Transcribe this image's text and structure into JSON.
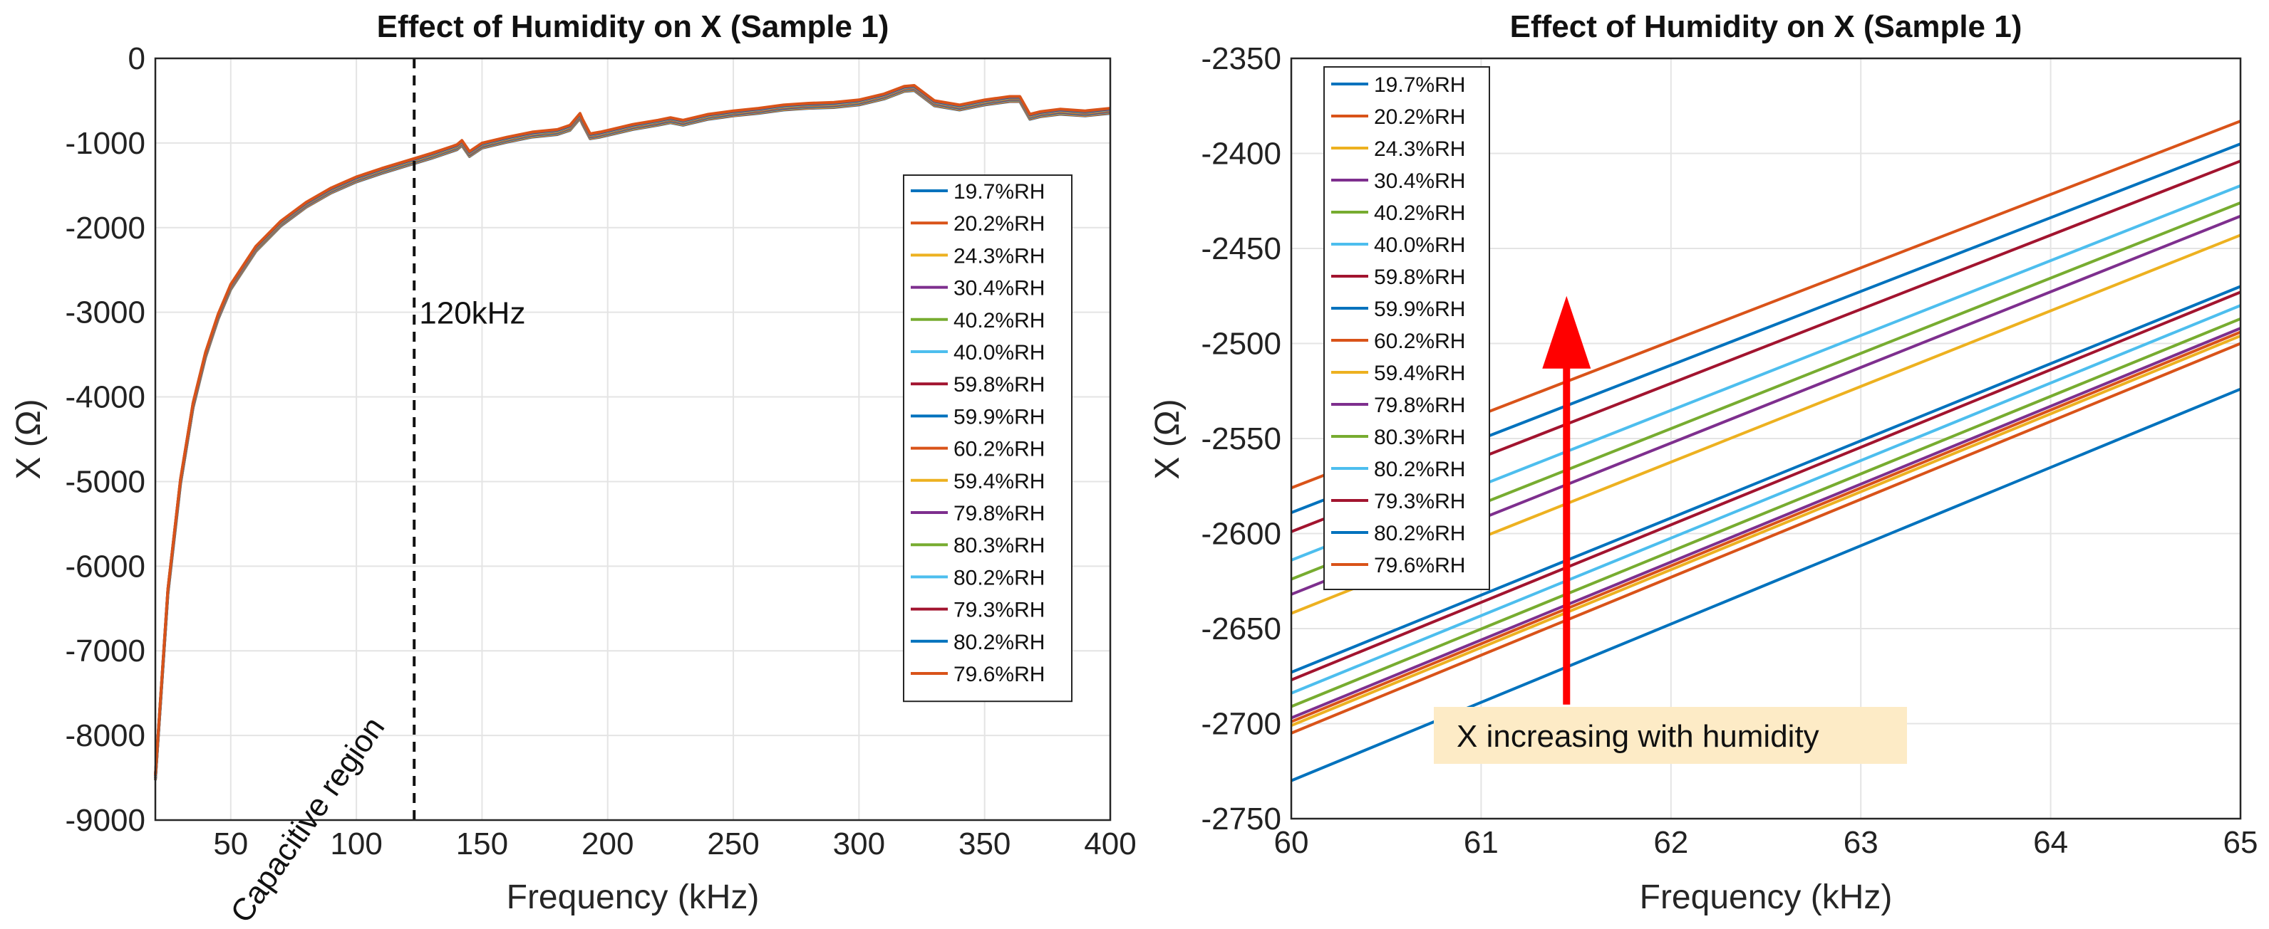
{
  "chart_data": [
    {
      "type": "line",
      "title": "Effect of Humidity on X (Sample 1)",
      "xlabel": "Frequency (kHz)",
      "ylabel": "X (Ω)",
      "xlim": [
        20,
        400
      ],
      "ylim": [
        -9000,
        0
      ],
      "xticks": [
        50,
        100,
        150,
        200,
        250,
        300,
        350,
        400
      ],
      "yticks": [
        0,
        -1000,
        -2000,
        -3000,
        -4000,
        -5000,
        -6000,
        -7000,
        -8000,
        -9000
      ],
      "grid": true,
      "legend_position": "right",
      "annotations": [
        {
          "text": "120kHz",
          "x": 125,
          "y": -3000
        },
        {
          "text": "Capacitive region",
          "x": 45,
          "y": -7000
        }
      ],
      "vline": {
        "x": 123,
        "style": "dashed",
        "color": "#111111"
      },
      "series_shape": {
        "points_kHz": [
          20,
          25,
          30,
          35,
          40,
          45,
          50,
          60,
          70,
          80,
          90,
          100,
          110,
          120,
          130,
          140,
          142,
          145,
          150,
          160,
          170,
          180,
          185,
          189,
          190,
          193,
          197,
          200,
          210,
          220,
          225,
          230,
          240,
          250,
          260,
          270,
          280,
          290,
          300,
          310,
          318,
          322,
          330,
          340,
          350,
          360,
          364,
          368,
          372,
          380,
          390,
          400
        ],
        "values_ohm": [
          -8500,
          -6300,
          -5000,
          -4100,
          -3500,
          -3050,
          -2700,
          -2250,
          -1950,
          -1730,
          -1560,
          -1430,
          -1330,
          -1240,
          -1150,
          -1050,
          -1000,
          -1130,
          -1030,
          -960,
          -900,
          -870,
          -820,
          -680,
          -750,
          -920,
          -900,
          -880,
          -810,
          -760,
          -730,
          -760,
          -690,
          -650,
          -620,
          -580,
          -560,
          -550,
          -520,
          -450,
          -360,
          -350,
          -530,
          -580,
          -520,
          -480,
          -480,
          -690,
          -660,
          -630,
          -650,
          -620
        ],
        "spread_ohm": 60
      },
      "series": [
        {
          "name": "19.7%RH",
          "color": "#0072BD"
        },
        {
          "name": "20.2%RH",
          "color": "#D95319"
        },
        {
          "name": "24.3%RH",
          "color": "#EDB120"
        },
        {
          "name": "30.4%RH",
          "color": "#7E2F8E"
        },
        {
          "name": "40.2%RH",
          "color": "#77AC30"
        },
        {
          "name": "40.0%RH",
          "color": "#4DBEEE"
        },
        {
          "name": "59.8%RH",
          "color": "#A2142F"
        },
        {
          "name": "59.9%RH",
          "color": "#0072BD"
        },
        {
          "name": "60.2%RH",
          "color": "#D95319"
        },
        {
          "name": "59.4%RH",
          "color": "#EDB120"
        },
        {
          "name": "79.8%RH",
          "color": "#7E2F8E"
        },
        {
          "name": "80.3%RH",
          "color": "#77AC30"
        },
        {
          "name": "80.2%RH",
          "color": "#4DBEEE"
        },
        {
          "name": "79.3%RH",
          "color": "#A2142F"
        },
        {
          "name": "80.2%RH",
          "color": "#0072BD"
        },
        {
          "name": "79.6%RH",
          "color": "#D95319"
        }
      ]
    },
    {
      "type": "line",
      "title": "Effect of Humidity on X (Sample 1)",
      "xlabel": "Frequency (kHz)",
      "ylabel": "X (Ω)",
      "xlim": [
        60,
        65
      ],
      "ylim": [
        -2750,
        -2350
      ],
      "xticks": [
        60,
        61,
        62,
        63,
        64,
        65
      ],
      "yticks": [
        -2350,
        -2400,
        -2450,
        -2500,
        -2550,
        -2600,
        -2650,
        -2700,
        -2750
      ],
      "grid": true,
      "legend_position": "top-left",
      "annotations": [
        {
          "text": "X increasing with humidity",
          "arrow_from": [
            61.45,
            -2690
          ],
          "arrow_to": [
            61.45,
            -2475
          ]
        }
      ],
      "series": [
        {
          "name": "19.7%RH",
          "color": "#0072BD",
          "x": [
            60,
            65
          ],
          "y": [
            -2730,
            -2524
          ]
        },
        {
          "name": "20.2%RH",
          "color": "#D95319",
          "x": [
            60,
            65
          ],
          "y": [
            -2705,
            -2500
          ]
        },
        {
          "name": "24.3%RH",
          "color": "#EDB120",
          "x": [
            60,
            65
          ],
          "y": [
            -2701,
            -2496
          ]
        },
        {
          "name": "30.4%RH",
          "color": "#7E2F8E",
          "x": [
            60,
            65
          ],
          "y": [
            -2697,
            -2492
          ]
        },
        {
          "name": "40.2%RH",
          "color": "#77AC30",
          "x": [
            60,
            65
          ],
          "y": [
            -2691,
            -2487
          ]
        },
        {
          "name": "40.0%RH",
          "color": "#4DBEEE",
          "x": [
            60,
            65
          ],
          "y": [
            -2684,
            -2480
          ]
        },
        {
          "name": "59.8%RH",
          "color": "#A2142F",
          "x": [
            60,
            65
          ],
          "y": [
            -2677,
            -2473
          ]
        },
        {
          "name": "59.9%RH",
          "color": "#0072BD",
          "x": [
            60,
            65
          ],
          "y": [
            -2673,
            -2470
          ]
        },
        {
          "name": "60.2%RH",
          "color": "#D95319",
          "x": [
            60,
            65
          ],
          "y": [
            -2576,
            -2383
          ]
        },
        {
          "name": "59.4%RH",
          "color": "#EDB120",
          "x": [
            60,
            65
          ],
          "y": [
            -2642,
            -2443
          ]
        },
        {
          "name": "79.8%RH",
          "color": "#7E2F8E",
          "x": [
            60,
            65
          ],
          "y": [
            -2632,
            -2433
          ]
        },
        {
          "name": "80.3%RH",
          "color": "#77AC30",
          "x": [
            60,
            65
          ],
          "y": [
            -2624,
            -2426
          ]
        },
        {
          "name": "80.2%RH",
          "color": "#4DBEEE",
          "x": [
            60,
            65
          ],
          "y": [
            -2614,
            -2417
          ]
        },
        {
          "name": "79.3%RH",
          "color": "#A2142F",
          "x": [
            60,
            65
          ],
          "y": [
            -2599,
            -2404
          ]
        },
        {
          "name": "80.2%RH",
          "color": "#0072BD",
          "x": [
            60,
            65
          ],
          "y": [
            -2589,
            -2395
          ]
        },
        {
          "name": "79.6%RH",
          "color": "#D95319",
          "x": [
            60,
            65
          ],
          "y": [
            -2699,
            -2494
          ]
        }
      ]
    }
  ]
}
